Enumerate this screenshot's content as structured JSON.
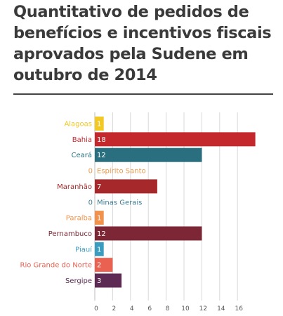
{
  "title": "Quantitativo de pedidos de benefícios e incentivos fiscais aprovados pela Sudene em outubro de 2014",
  "chart_data": {
    "type": "bar",
    "orientation": "horizontal",
    "title": "Quantitativo de pedidos de benefícios e incentivos fiscais aprovados pela Sudene em outubro de 2014",
    "xlabel": "",
    "ylabel": "",
    "xlim": [
      0,
      18
    ],
    "x_ticks": [
      0,
      2,
      4,
      6,
      8,
      10,
      12,
      14,
      16
    ],
    "grid": true,
    "legend": "none",
    "categories": [
      "Alagoas",
      "Bahia",
      "Ceará",
      "Espírito Santo",
      "Maranhão",
      "Minas Gerais",
      "Paraíba",
      "Pernambuco",
      "Piauí",
      "Rio Grande do Norte",
      "Sergipe"
    ],
    "values": [
      1,
      18,
      12,
      0,
      7,
      0,
      1,
      12,
      1,
      2,
      3
    ],
    "colors": [
      "#f2c824",
      "#c4282c",
      "#2a6f80",
      "#e99a4a",
      "#a7282a",
      "#3f7d94",
      "#f0924b",
      "#7d2635",
      "#3a9dc0",
      "#ea6152",
      "#5c2a52"
    ]
  }
}
